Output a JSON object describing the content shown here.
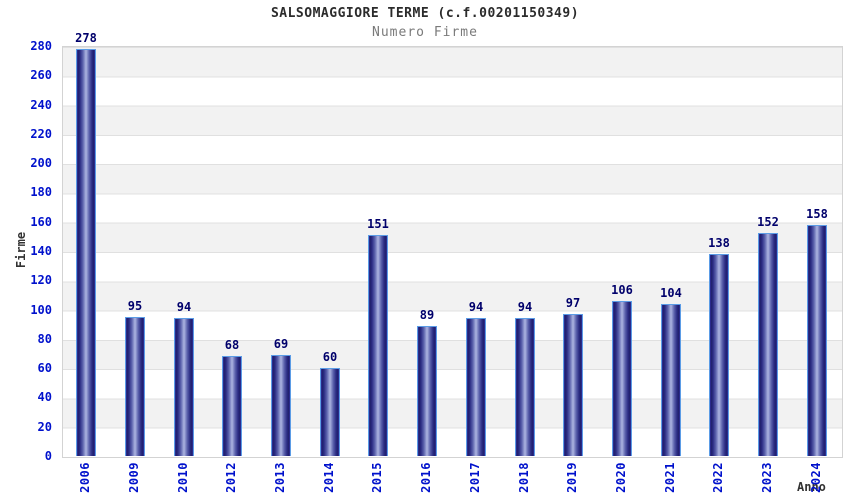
{
  "header": {
    "title": "SALSOMAGGIORE TERME (c.f.00201150349)",
    "subtitle": "Numero Firme"
  },
  "chart_data": {
    "type": "bar",
    "title": "SALSOMAGGIORE TERME (c.f.00201150349)",
    "subtitle": "Numero Firme",
    "xlabel": "Anno",
    "ylabel": "Firme",
    "categories": [
      "2006",
      "2009",
      "2010",
      "2012",
      "2013",
      "2014",
      "2015",
      "2016",
      "2017",
      "2018",
      "2019",
      "2020",
      "2021",
      "2022",
      "2023",
      "2024"
    ],
    "values": [
      278,
      95,
      94,
      68,
      69,
      60,
      151,
      89,
      94,
      94,
      97,
      106,
      104,
      138,
      152,
      158
    ],
    "ylim": [
      0,
      280
    ],
    "ytick_step": 20,
    "grid": "horizontal",
    "legend": "none",
    "colors": {
      "bar_dark": "#1f1f6a",
      "bar_light": "#adb3e0",
      "bar_outline": "#5b9ce6",
      "tick_label": "#0011cc",
      "value_label": "#00006b",
      "band_gray": "#f2f2f2",
      "grid_line": "#e0e0e0",
      "plot_border": "#d3d3d3",
      "title": "#2b2b2b",
      "subtitle": "#7a7a7a",
      "axis_title": "#333333"
    }
  }
}
